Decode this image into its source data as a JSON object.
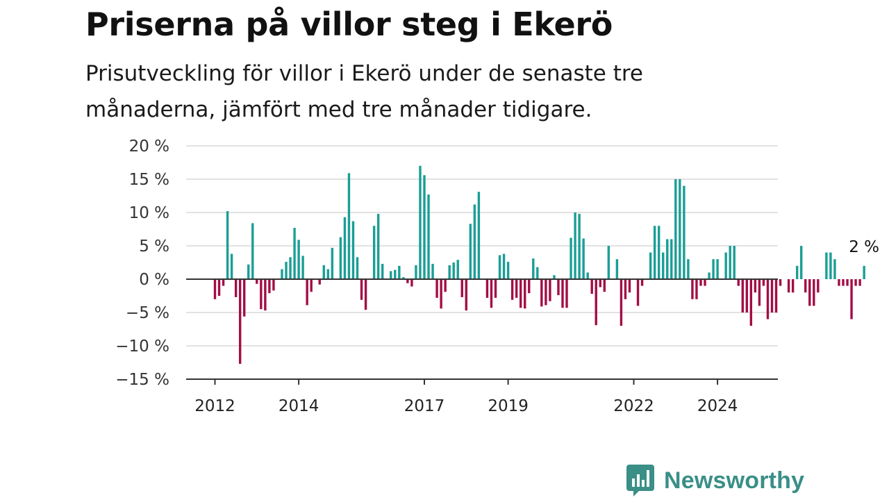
{
  "chart_data": {
    "type": "bar",
    "title": "Priserna på villor steg i Ekerö",
    "subtitle": "Prisutveckling för villor i Ekerö under de senaste tre månaderna, jämfört med tre månader tidigare.",
    "ylim": [
      -15,
      20
    ],
    "yticks": [
      20,
      15,
      10,
      5,
      0,
      -5,
      -10,
      -15
    ],
    "ytick_labels": [
      "20 %",
      "15 %",
      "10 %",
      "5 %",
      "0 %",
      "−5 %",
      "−10 %",
      "−15 %"
    ],
    "x_start": "2012-01",
    "x_ticks": [
      {
        "label": "2012",
        "month_index": 0
      },
      {
        "label": "2014",
        "month_index": 20
      },
      {
        "label": "2017",
        "month_index": 50
      },
      {
        "label": "2019",
        "month_index": 70
      },
      {
        "label": "2022",
        "month_index": 100
      },
      {
        "label": "2024",
        "month_index": 120
      }
    ],
    "values": [
      -3,
      -2.5,
      -1,
      10.2,
      3.8,
      -2.7,
      -12.7,
      -5.6,
      2.2,
      8.4,
      -0.7,
      -4.5,
      -4.7,
      -2.1,
      -1.7,
      0,
      1.5,
      2.6,
      3.3,
      7.7,
      5.9,
      3.5,
      -3.9,
      -1.9,
      0,
      -0.8,
      2.1,
      1.5,
      4.7,
      0,
      6.3,
      9.3,
      15.9,
      8.7,
      3.3,
      -3.1,
      -4.6,
      0,
      8,
      9.8,
      2.3,
      0,
      1.2,
      1.4,
      2,
      0.3,
      -0.6,
      -1.1,
      2.1,
      17,
      15.6,
      12.7,
      2.3,
      -2.8,
      -4.4,
      -1.9,
      2.1,
      2.5,
      2.9,
      -2.7,
      -4.7,
      8.3,
      11.2,
      13.1,
      0,
      -2.8,
      -4.3,
      -2.8,
      3.6,
      3.8,
      2.6,
      -3.1,
      -2.8,
      -4.3,
      -4.4,
      -2.1,
      3.1,
      1.8,
      -4.1,
      -3.9,
      -3.3,
      0.6,
      -2.4,
      -4.3,
      -4.3,
      6.2,
      10,
      9.8,
      6.1,
      1,
      -2.2,
      -6.9,
      -1.2,
      -1.9,
      5,
      0,
      3,
      -7,
      -3,
      -2,
      0,
      -4,
      -1,
      0,
      4,
      8,
      8,
      4,
      6,
      6,
      15,
      15,
      14,
      3,
      -3,
      -3,
      -1,
      -1,
      1,
      3,
      3,
      0,
      4,
      5,
      5,
      -1,
      -5,
      -5,
      -7,
      -2,
      -4,
      -1,
      -6,
      -5,
      -5,
      -1,
      0,
      -2,
      -2,
      2,
      5,
      -2,
      -4,
      -4,
      -2,
      0,
      4,
      4,
      3,
      -1,
      -1,
      -1,
      -6,
      -1,
      -1,
      2
    ],
    "positive_color": "#1a9e96",
    "negative_color": "#a30d45",
    "grid": true,
    "last_value_label": "2 %"
  },
  "brand": {
    "name": "Newsworthy",
    "icon": "newsworthy-logo-icon",
    "color": "#3a8f87"
  }
}
